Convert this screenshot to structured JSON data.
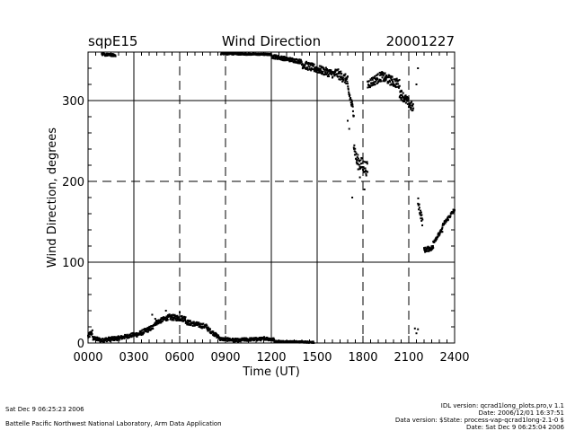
{
  "chart_data": {
    "type": "scatter",
    "title": "Wind Direction",
    "site": "sqpE15",
    "date": "20001227",
    "xlabel": "Time (UT)",
    "ylabel": "Wind Direction, degrees",
    "xlim": [
      0,
      24
    ],
    "ylim": [
      0,
      360
    ],
    "xticks": [
      0,
      3,
      6,
      9,
      12,
      15,
      18,
      21,
      24
    ],
    "xtick_labels": [
      "0000",
      "0300",
      "0600",
      "0900",
      "1200",
      "1500",
      "1800",
      "2100",
      "2400"
    ],
    "yticks": [
      0,
      100,
      200,
      300
    ],
    "ytick_labels": [
      "0",
      "100",
      "200",
      "300"
    ],
    "grid": {
      "vertical_solid": [
        3,
        12,
        15
      ],
      "vertical_dashed": [
        6,
        9,
        18,
        21
      ],
      "horizontal_solid": [
        100,
        300
      ],
      "horizontal_dashed": [
        200
      ]
    },
    "point_color": "#000000",
    "series_segments": [
      {
        "range": [
          0.0,
          0.3
        ],
        "from": 8,
        "to": 14,
        "spread": 7
      },
      {
        "range": [
          0.3,
          1.0
        ],
        "from": 6,
        "to": 3,
        "spread": 5
      },
      {
        "range": [
          1.0,
          2.0
        ],
        "from": 4,
        "to": 6,
        "spread": 5
      },
      {
        "range": [
          2.0,
          3.2
        ],
        "from": 6,
        "to": 11,
        "spread": 5
      },
      {
        "range": [
          3.2,
          4.3
        ],
        "from": 10,
        "to": 20,
        "spread": 6
      },
      {
        "range": [
          4.3,
          5.3
        ],
        "from": 24,
        "to": 32,
        "spread": 6
      },
      {
        "range": [
          5.3,
          6.4
        ],
        "from": 32,
        "to": 30,
        "spread": 7
      },
      {
        "range": [
          6.4,
          7.8
        ],
        "from": 26,
        "to": 20,
        "spread": 6
      },
      {
        "range": [
          7.8,
          8.7
        ],
        "from": 18,
        "to": 5,
        "spread": 5
      },
      {
        "range": [
          8.7,
          10.0
        ],
        "from": 5,
        "to": 3,
        "spread": 4
      },
      {
        "range": [
          10.0,
          11.5
        ],
        "from": 4,
        "to": 5,
        "spread": 4
      },
      {
        "range": [
          11.5,
          12.2
        ],
        "from": 6,
        "to": 4,
        "spread": 4
      },
      {
        "range": [
          12.2,
          14.8
        ],
        "from": 2,
        "to": 1,
        "spread": 2
      },
      {
        "range": [
          0.9,
          1.8
        ],
        "from": 357,
        "to": 356,
        "spread": 3
      },
      {
        "range": [
          8.7,
          12.0
        ],
        "from": 358,
        "to": 357,
        "spread": 2
      },
      {
        "range": [
          12.0,
          14.0
        ],
        "from": 355,
        "to": 348,
        "spread": 5
      },
      {
        "range": [
          14.0,
          16.2
        ],
        "from": 345,
        "to": 332,
        "spread": 10
      },
      {
        "range": [
          16.2,
          17.0
        ],
        "from": 335,
        "to": 325,
        "spread": 12
      },
      {
        "range": [
          17.0,
          17.4
        ],
        "from": 315,
        "to": 285,
        "spread": 12
      },
      {
        "range": [
          17.4,
          17.6
        ],
        "from": 245,
        "to": 225,
        "spread": 15
      },
      {
        "range": [
          17.6,
          18.3
        ],
        "from": 225,
        "to": 215,
        "spread": 18
      },
      {
        "range": [
          18.3,
          19.2
        ],
        "from": 320,
        "to": 330,
        "spread": 12
      },
      {
        "range": [
          19.2,
          20.4
        ],
        "from": 330,
        "to": 320,
        "spread": 12
      },
      {
        "range": [
          20.4,
          21.3
        ],
        "from": 310,
        "to": 290,
        "spread": 12
      },
      {
        "range": [
          21.6,
          21.9
        ],
        "from": 175,
        "to": 150,
        "spread": 12
      },
      {
        "range": [
          22.0,
          22.6
        ],
        "from": 115,
        "to": 118,
        "spread": 6
      },
      {
        "range": [
          22.6,
          23.2
        ],
        "from": 125,
        "to": 140,
        "spread": 5
      },
      {
        "range": [
          23.2,
          24.0
        ],
        "from": 145,
        "to": 165,
        "spread": 5
      }
    ],
    "extra_points": [
      [
        4.2,
        35
      ],
      [
        4.4,
        30
      ],
      [
        5.1,
        40
      ],
      [
        6.0,
        38
      ],
      [
        21.5,
        320
      ],
      [
        21.6,
        340
      ],
      [
        21.4,
        18
      ],
      [
        21.6,
        17
      ],
      [
        21.5,
        12
      ],
      [
        17.3,
        180
      ],
      [
        17.8,
        205
      ],
      [
        18.1,
        190
      ],
      [
        17.1,
        265
      ],
      [
        17.0,
        275
      ]
    ]
  },
  "footer": {
    "left_line1": "Sat Dec  9 06:25:23 2006",
    "left_line2": "Battelle Pacific Northwest National Laboratory, Arm Data Application",
    "right_line1": "IDL version: qcrad1long_plots.pro,v 1.1",
    "right_line2": "Date: 2006/12/01 16:37:51",
    "right_line3": "Data version: $State: process-vap-qcrad1long-2.1-0 $",
    "right_line4": "Date: Sat Dec  9 06:25:04 2006"
  }
}
